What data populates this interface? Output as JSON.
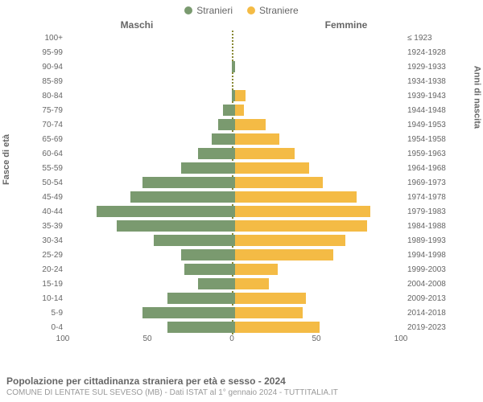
{
  "chart": {
    "type": "population-pyramid",
    "legend": {
      "male": {
        "label": "Stranieri",
        "color": "#7a9a6f"
      },
      "female": {
        "label": "Straniere",
        "color": "#f4bb45"
      }
    },
    "headers": {
      "left": "Maschi",
      "right": "Femmine"
    },
    "axis_titles": {
      "left": "Fasce di età",
      "right": "Anni di nascita"
    },
    "xlim": [
      0,
      100
    ],
    "xticks_left": [
      100,
      50,
      0
    ],
    "xticks_right": [
      50,
      100
    ],
    "bar_colors": {
      "male": "#7a9a6f",
      "female": "#f4bb45"
    },
    "background_color": "#ffffff",
    "label_color": "#666666",
    "label_fontsize": 10,
    "header_fontsize": 12,
    "rows": [
      {
        "age": "100+",
        "birth": "≤ 1923",
        "m": 0,
        "f": 0
      },
      {
        "age": "95-99",
        "birth": "1924-1928",
        "m": 0,
        "f": 0
      },
      {
        "age": "90-94",
        "birth": "1929-1933",
        "m": 2,
        "f": 0
      },
      {
        "age": "85-89",
        "birth": "1934-1938",
        "m": 0,
        "f": 0
      },
      {
        "age": "80-84",
        "birth": "1939-1943",
        "m": 2,
        "f": 6
      },
      {
        "age": "75-79",
        "birth": "1944-1948",
        "m": 7,
        "f": 5
      },
      {
        "age": "70-74",
        "birth": "1949-1953",
        "m": 10,
        "f": 18
      },
      {
        "age": "65-69",
        "birth": "1954-1958",
        "m": 14,
        "f": 26
      },
      {
        "age": "60-64",
        "birth": "1959-1963",
        "m": 22,
        "f": 35
      },
      {
        "age": "55-59",
        "birth": "1964-1968",
        "m": 32,
        "f": 44
      },
      {
        "age": "50-54",
        "birth": "1969-1973",
        "m": 55,
        "f": 52
      },
      {
        "age": "45-49",
        "birth": "1974-1978",
        "m": 62,
        "f": 72
      },
      {
        "age": "40-44",
        "birth": "1979-1983",
        "m": 82,
        "f": 80
      },
      {
        "age": "35-39",
        "birth": "1984-1988",
        "m": 70,
        "f": 78
      },
      {
        "age": "30-34",
        "birth": "1989-1993",
        "m": 48,
        "f": 65
      },
      {
        "age": "25-29",
        "birth": "1994-1998",
        "m": 32,
        "f": 58
      },
      {
        "age": "20-24",
        "birth": "1999-2003",
        "m": 30,
        "f": 25
      },
      {
        "age": "15-19",
        "birth": "2004-2008",
        "m": 22,
        "f": 20
      },
      {
        "age": "10-14",
        "birth": "2009-2013",
        "m": 40,
        "f": 42
      },
      {
        "age": "5-9",
        "birth": "2014-2018",
        "m": 55,
        "f": 40
      },
      {
        "age": "0-4",
        "birth": "2019-2023",
        "m": 40,
        "f": 50
      }
    ],
    "footer": {
      "title": "Popolazione per cittadinanza straniera per età e sesso - 2024",
      "subtitle": "COMUNE DI LENTATE SUL SEVESO (MB) - Dati ISTAT al 1° gennaio 2024 - TUTTITALIA.IT"
    }
  }
}
